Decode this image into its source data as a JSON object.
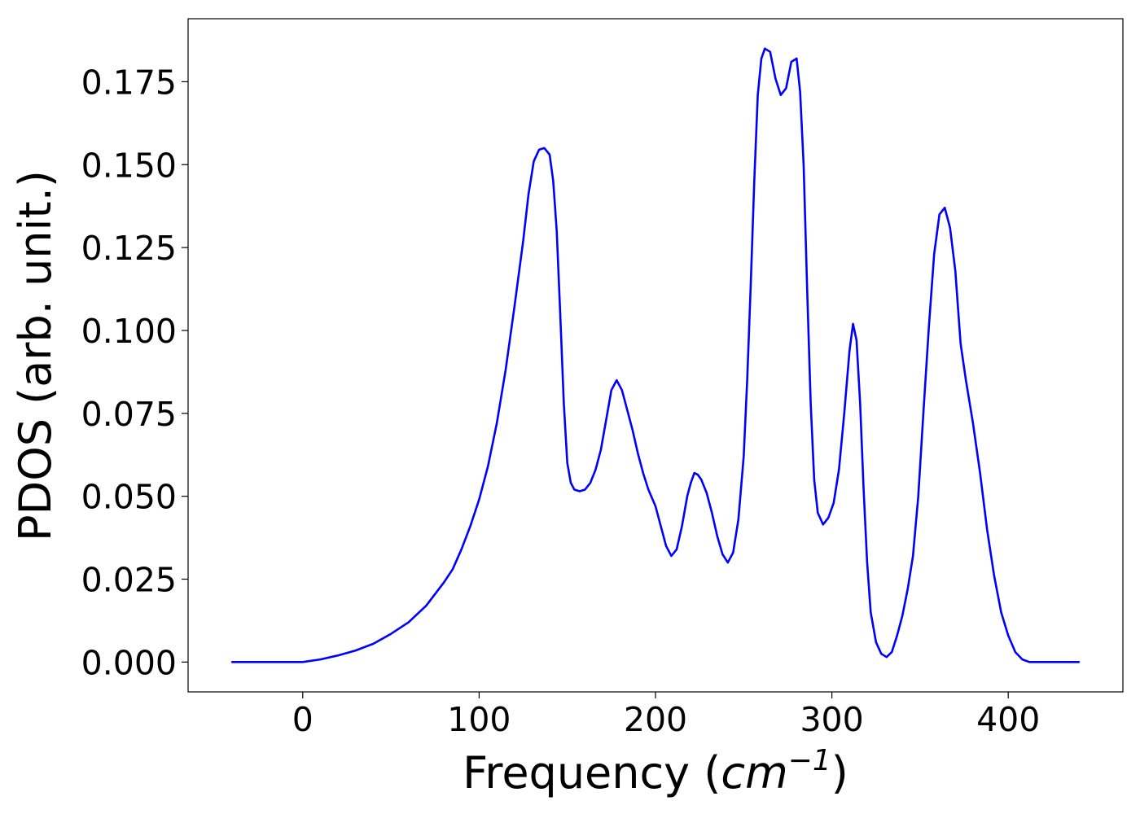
{
  "chart_data": {
    "type": "line",
    "title": "",
    "xlabel": {
      "prefix": "Frequency (",
      "unit": "cm",
      "exponent": "−1",
      "suffix": ")"
    },
    "ylabel": "PDOS (arb. unit.)",
    "xlim": [
      -65,
      465
    ],
    "ylim": [
      -0.009,
      0.194
    ],
    "xticks": [
      0,
      100,
      200,
      300,
      400
    ],
    "xtick_labels": [
      "0",
      "100",
      "200",
      "300",
      "400"
    ],
    "yticks": [
      0.0,
      0.025,
      0.05,
      0.075,
      0.1,
      0.125,
      0.15,
      0.175
    ],
    "ytick_labels": [
      "0.000",
      "0.025",
      "0.050",
      "0.075",
      "0.100",
      "0.125",
      "0.150",
      "0.175"
    ],
    "grid": false,
    "legend": "none",
    "series": [
      {
        "color": "#0000ff",
        "x": [
          -40,
          -20,
          0,
          10,
          20,
          30,
          40,
          50,
          60,
          70,
          80,
          85,
          90,
          95,
          100,
          105,
          110,
          115,
          120,
          125,
          128,
          131,
          134,
          137,
          140,
          142,
          144,
          146,
          148,
          150,
          152,
          154,
          157,
          160,
          163,
          166,
          169,
          172,
          175,
          178,
          181,
          184,
          187,
          190,
          193,
          196,
          200,
          203,
          206,
          209,
          212,
          215,
          218,
          220,
          222,
          224,
          226,
          229,
          232,
          235,
          238,
          241,
          244,
          247,
          250,
          252,
          254,
          256,
          258,
          260,
          262,
          265,
          268,
          271,
          274,
          277,
          280,
          282,
          284,
          286,
          288,
          290,
          292,
          295,
          298,
          301,
          304,
          307,
          310,
          312,
          314,
          316,
          318,
          320,
          322,
          325,
          328,
          331,
          334,
          337,
          340,
          343,
          346,
          349,
          352,
          355,
          358,
          361,
          364,
          367,
          370,
          373,
          376,
          380,
          384,
          388,
          392,
          396,
          400,
          404,
          408,
          412,
          420,
          430,
          440
        ],
        "y": [
          0.0,
          0.0,
          0.0,
          0.0008,
          0.002,
          0.0035,
          0.0055,
          0.0085,
          0.012,
          0.017,
          0.024,
          0.028,
          0.034,
          0.041,
          0.049,
          0.059,
          0.072,
          0.088,
          0.107,
          0.127,
          0.141,
          0.151,
          0.1545,
          0.155,
          0.153,
          0.145,
          0.13,
          0.105,
          0.078,
          0.06,
          0.054,
          0.052,
          0.0515,
          0.052,
          0.054,
          0.058,
          0.064,
          0.073,
          0.082,
          0.085,
          0.082,
          0.076,
          0.07,
          0.063,
          0.057,
          0.052,
          0.047,
          0.041,
          0.035,
          0.032,
          0.034,
          0.041,
          0.05,
          0.054,
          0.057,
          0.0565,
          0.055,
          0.051,
          0.045,
          0.038,
          0.0325,
          0.03,
          0.033,
          0.043,
          0.062,
          0.085,
          0.114,
          0.145,
          0.171,
          0.182,
          0.185,
          0.184,
          0.176,
          0.171,
          0.173,
          0.181,
          0.182,
          0.172,
          0.15,
          0.112,
          0.078,
          0.055,
          0.045,
          0.0415,
          0.0435,
          0.048,
          0.058,
          0.075,
          0.094,
          0.102,
          0.097,
          0.078,
          0.052,
          0.03,
          0.015,
          0.006,
          0.0025,
          0.0015,
          0.003,
          0.008,
          0.014,
          0.022,
          0.032,
          0.05,
          0.076,
          0.101,
          0.123,
          0.135,
          0.137,
          0.131,
          0.118,
          0.096,
          0.085,
          0.072,
          0.057,
          0.04,
          0.026,
          0.015,
          0.008,
          0.003,
          0.0008,
          0.0,
          0.0,
          0.0,
          0.0
        ]
      }
    ]
  }
}
